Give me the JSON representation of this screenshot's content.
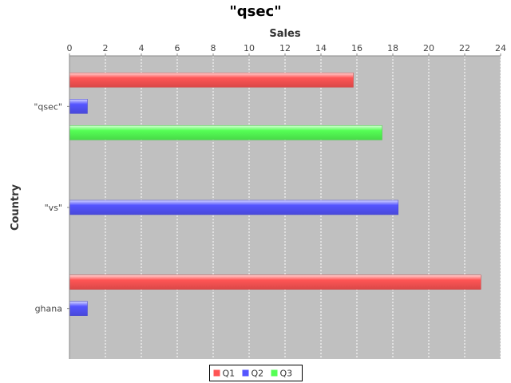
{
  "chart_data": {
    "type": "bar",
    "orientation": "horizontal",
    "title": "\"qsec\"",
    "xlabel": "Sales",
    "ylabel": "Country",
    "xlim": [
      0,
      24
    ],
    "xticks": [
      0,
      2,
      4,
      6,
      8,
      10,
      12,
      14,
      16,
      18,
      20,
      22,
      24
    ],
    "categories": [
      "\"qsec\"",
      "\"vs\"",
      "ghana"
    ],
    "series": [
      {
        "name": "Q1",
        "color": "#ff5555",
        "values": [
          15.8,
          null,
          22.9
        ]
      },
      {
        "name": "Q2",
        "color": "#5555ff",
        "values": [
          1.0,
          18.3,
          1.0
        ]
      },
      {
        "name": "Q3",
        "color": "#55ff55",
        "values": [
          17.4,
          null,
          null
        ]
      }
    ],
    "grid": true,
    "legend_position": "bottom"
  }
}
